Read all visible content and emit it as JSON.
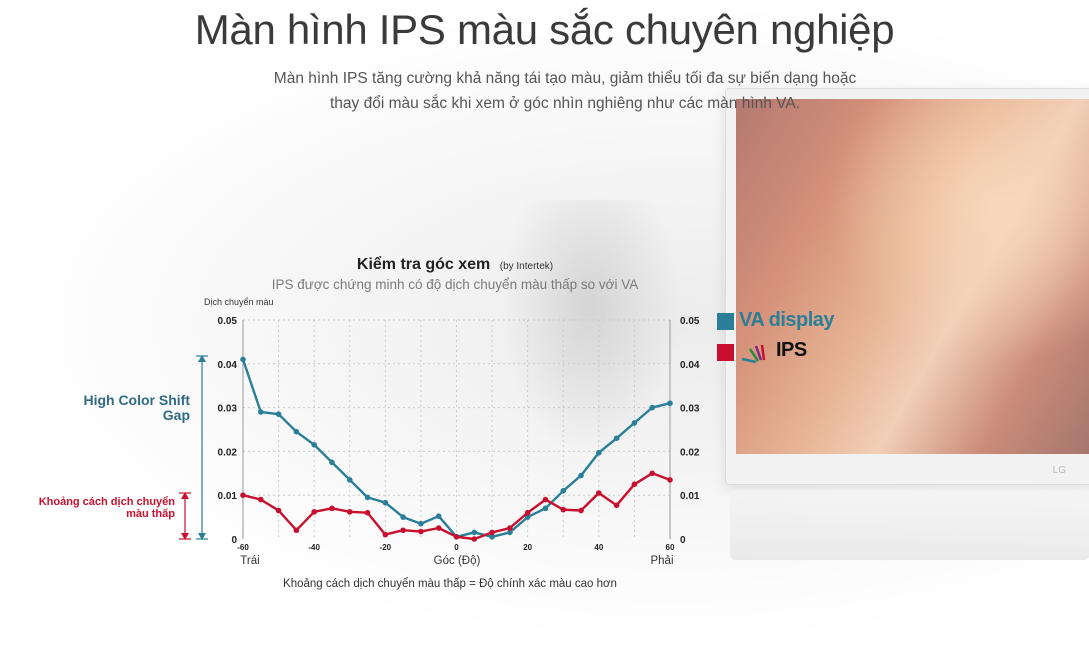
{
  "header": {
    "title": "Màn hình IPS màu sắc chuyên nghiệp",
    "description": "Màn hình IPS tăng cường khả năng tái tạo màu, giảm thiểu tối đa sự biến dạng hoặc thay đổi màu sắc khi xem ở góc nhìn nghiêng như các màn hình VA."
  },
  "monitor": {
    "logo": "LG"
  },
  "legend": {
    "va_label": "VA display",
    "ips_label": "IPS",
    "va_color": "#2a7e98",
    "ips_color": "#c8102e"
  },
  "annotations": {
    "high_gap": "High Color Shift Gap",
    "low_gap": "Khoảng cách dịch chuyển màu thấp"
  },
  "chart_data": {
    "type": "line",
    "title": "Kiểm tra góc xem",
    "title_note": "(by Intertek)",
    "subtitle": "IPS được chứng minh có độ dịch chuyển màu thấp so với VA",
    "ylabel": "Dịch chuyển màu",
    "xlabel": "Góc (Độ)",
    "x_left_label": "Trái",
    "x_right_label": "Phải",
    "footnote": "Khoảng cách dịch chuyển màu thấp = Độ chính xác màu cao hơn",
    "xlim": [
      -60,
      60
    ],
    "ylim": [
      0,
      0.05
    ],
    "x_ticks": [
      "-60",
      "-40",
      "-20",
      "0",
      "20",
      "40",
      "60"
    ],
    "x_tick_values": [
      -60,
      -40,
      -20,
      0,
      20,
      40,
      60
    ],
    "y_ticks": [
      "0",
      "0.01",
      "0.02",
      "0.03",
      "0.04",
      "0.05"
    ],
    "y_tick_values": [
      0,
      0.01,
      0.02,
      0.03,
      0.04,
      0.05
    ],
    "grid": true,
    "series": [
      {
        "name": "VA display",
        "color": "#2a7e98",
        "x": [
          -60,
          -55,
          -50,
          -45,
          -40,
          -35,
          -30,
          -25,
          -20,
          -15,
          -10,
          -5,
          0,
          5,
          10,
          15,
          20,
          25,
          30,
          35,
          40,
          45,
          50,
          55,
          60
        ],
        "y": [
          0.041,
          0.029,
          0.0285,
          0.0245,
          0.0215,
          0.0175,
          0.0135,
          0.0095,
          0.0083,
          0.005,
          0.0035,
          0.0052,
          0.0005,
          0.0015,
          0.0005,
          0.0015,
          0.005,
          0.007,
          0.011,
          0.0145,
          0.0197,
          0.023,
          0.0265,
          0.03,
          0.031
        ]
      },
      {
        "name": "IPS",
        "color": "#c8102e",
        "x": [
          -60,
          -55,
          -50,
          -45,
          -40,
          -35,
          -30,
          -25,
          -20,
          -15,
          -10,
          -5,
          0,
          5,
          10,
          15,
          20,
          25,
          30,
          35,
          40,
          45,
          50,
          55,
          60
        ],
        "y": [
          0.01,
          0.009,
          0.0065,
          0.002,
          0.0062,
          0.007,
          0.0062,
          0.006,
          0.001,
          0.002,
          0.0017,
          0.0025,
          0.0005,
          0.0,
          0.0015,
          0.0025,
          0.006,
          0.009,
          0.0067,
          0.0065,
          0.0105,
          0.0077,
          0.0125,
          0.015,
          0.0135
        ]
      }
    ]
  }
}
